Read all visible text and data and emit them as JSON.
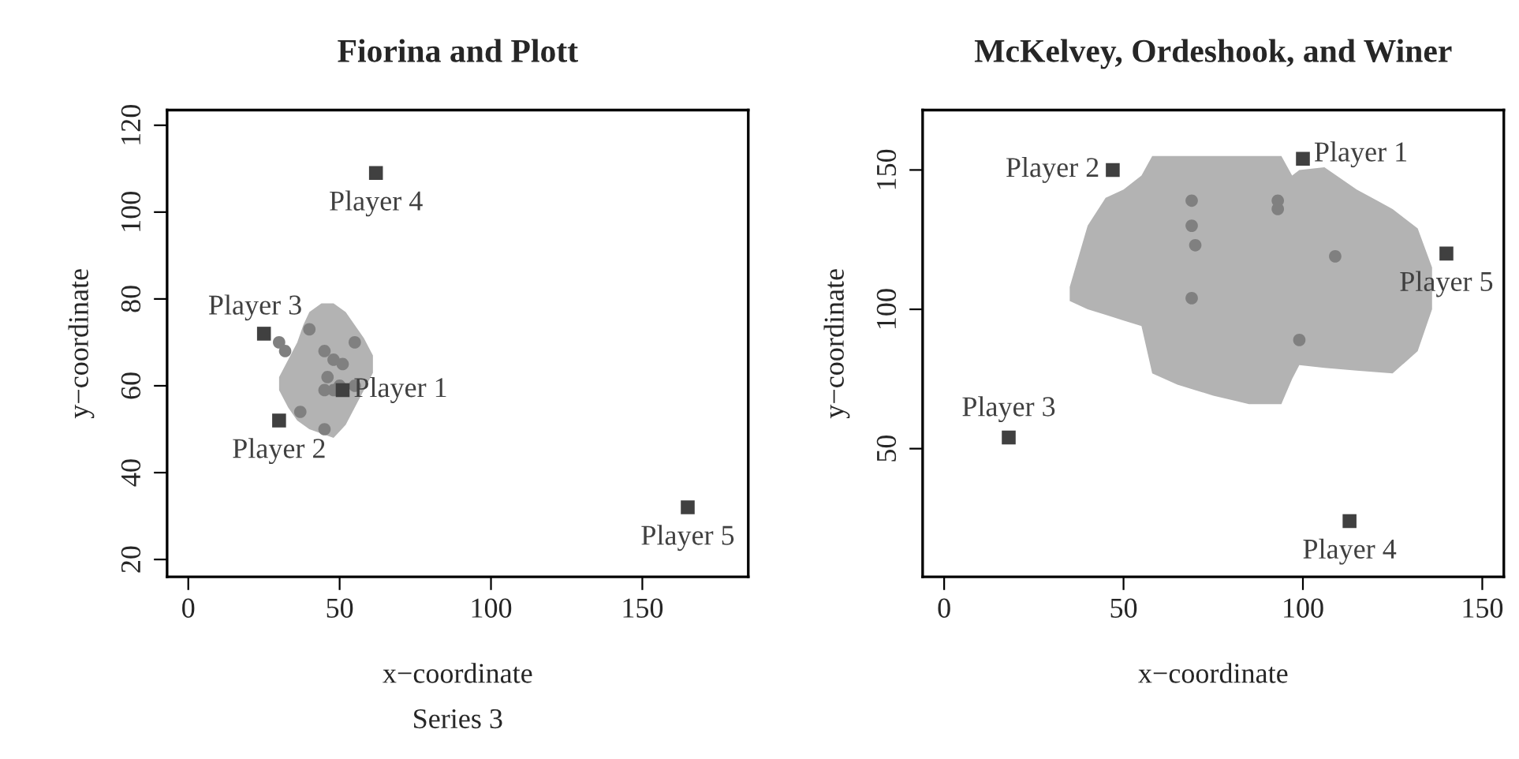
{
  "chart_data": [
    {
      "type": "scatter",
      "title": "Fiorina and Plott",
      "xlabel": "x−coordinate",
      "ylabel": "y−coordinate",
      "xlim": [
        -7,
        185
      ],
      "ylim": [
        16,
        123.5
      ],
      "xticks": [
        0,
        50,
        100,
        150
      ],
      "yticks": [
        20,
        40,
        60,
        80,
        100,
        120
      ],
      "grid": false,
      "legend": false,
      "series": [
        {
          "type": "line",
          "color": "#b3b3b3",
          "x": [
            30,
            33,
            36,
            38,
            40,
            44,
            48,
            52,
            55,
            58,
            61
          ],
          "values": [
            null,
            null,
            null,
            null,
            null,
            null,
            null,
            null,
            null,
            null,
            null
          ],
          "lower": [
            59,
            55,
            52,
            51,
            50,
            49,
            48,
            51,
            55,
            59,
            63
          ],
          "upper": [
            62,
            66,
            70,
            74,
            77,
            79,
            79,
            77,
            74,
            71,
            67
          ]
        },
        {
          "marker": "circle",
          "color": "#808080",
          "x": [
            30,
            32,
            40,
            55,
            45,
            48,
            51,
            46,
            45,
            48,
            50,
            55,
            37,
            45
          ],
          "values": [
            70,
            68,
            73,
            70,
            68,
            66,
            65,
            62,
            59,
            59,
            60,
            60,
            54,
            50
          ]
        },
        {
          "marker": "square",
          "color": "#404040",
          "x": [
            51,
            30,
            25,
            62,
            165
          ],
          "values": [
            59,
            52,
            72,
            109,
            32
          ]
        }
      ],
      "annotations": [
        {
          "text": "Player 1",
          "x": 51,
          "y": 59
        },
        {
          "text": "Player 2",
          "x": 30,
          "y": 52
        },
        {
          "text": "Player 3",
          "x": 25,
          "y": 72
        },
        {
          "text": "Player 4",
          "x": 62,
          "y": 109
        },
        {
          "text": "Player 5",
          "x": 165,
          "y": 32
        },
        "Series 3"
      ]
    },
    {
      "type": "scatter",
      "title": "McKelvey, Ordeshook, and Winer",
      "xlabel": "x−coordinate",
      "ylabel": "y−coordinate",
      "xlim": [
        -6,
        156
      ],
      "ylim": [
        4,
        171.5
      ],
      "xticks": [
        0,
        50,
        100,
        150
      ],
      "yticks": [
        50,
        100,
        150
      ],
      "grid": false,
      "legend": false,
      "series": [
        {
          "type": "line",
          "color": "#b3b3b3",
          "x": [
            35,
            40,
            45,
            50,
            55,
            58,
            65,
            75,
            85,
            94,
            97,
            99,
            106,
            115,
            125,
            132,
            136
          ],
          "values": [
            null,
            null,
            null,
            null,
            null,
            null,
            null,
            null,
            null,
            null,
            null,
            null,
            null,
            null,
            null,
            null,
            null
          ],
          "lower": [
            103,
            100,
            98,
            96,
            94,
            77,
            73,
            69,
            66,
            66,
            75,
            80,
            79,
            78,
            77,
            85,
            100
          ],
          "upper": [
            108,
            130,
            140,
            143,
            148,
            155,
            155,
            155,
            155,
            155,
            148,
            150,
            151,
            143,
            136,
            129,
            115
          ]
        },
        {
          "marker": "circle",
          "color": "#808080",
          "x": [
            69,
            69,
            70,
            69,
            93,
            93,
            109,
            99
          ],
          "values": [
            139,
            130,
            123,
            104,
            139,
            136,
            119,
            89
          ]
        },
        {
          "marker": "square",
          "color": "#404040",
          "x": [
            100,
            47,
            18,
            113,
            140
          ],
          "values": [
            154,
            150,
            54,
            24,
            120
          ]
        }
      ],
      "annotations": [
        {
          "text": "Player 1",
          "x": 100,
          "y": 154
        },
        {
          "text": "Player 2",
          "x": 47,
          "y": 150
        },
        {
          "text": "Player 3",
          "x": 18,
          "y": 54
        },
        {
          "text": "Player 4",
          "x": 113,
          "y": 24
        },
        {
          "text": "Player 5",
          "x": 140,
          "y": 120
        }
      ]
    }
  ]
}
